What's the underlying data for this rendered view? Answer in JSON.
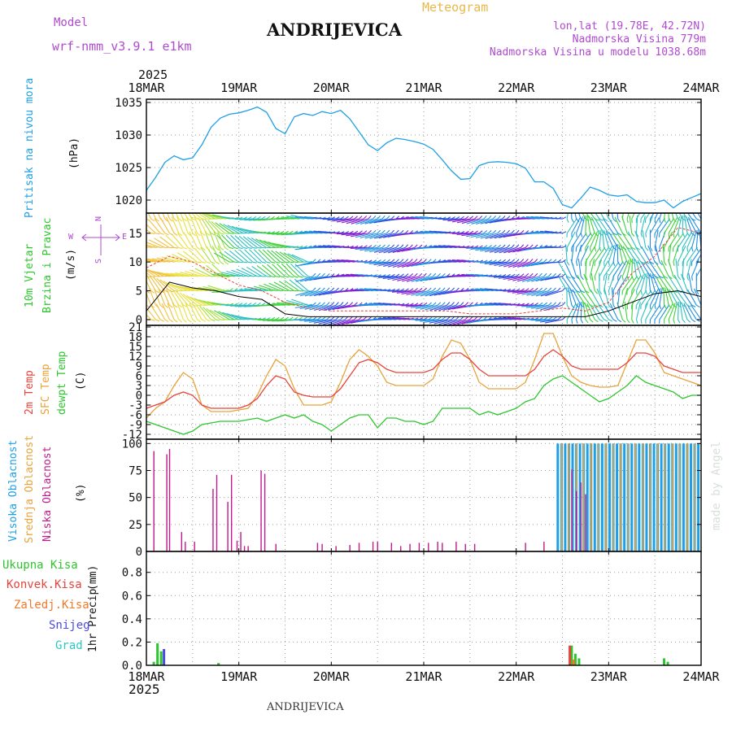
{
  "header": {
    "model_label": "Model",
    "model_name": "wrf-nmm_v3.9.1 e1km",
    "title": "ANDRIJEVICA",
    "subtitle": "Meteogram",
    "lonlat": "lon,lat (19.78E, 42.72N)",
    "elevation": "Nadmorska Visina 779m",
    "model_elevation": "Nadmorska Visina u modelu 1038.68m",
    "year_top": "2025",
    "year_bottom": "2025",
    "footer": "ANDRIJEVICA",
    "watermark": "made by Angel"
  },
  "colors": {
    "pressure": "#1fa0e6",
    "temp2m": "#e8433a",
    "sfc": "#e8a33a",
    "dewpt": "#2ec62e",
    "high_cloud": "#1fa0e6",
    "mid_cloud": "#e8a33a",
    "low_cloud": "#c01a8c",
    "label_magenta": "#b04ad0",
    "precip_total": "#2ec62e",
    "precip_conv": "#e8433a",
    "precip_frozen": "#f07a2a",
    "precip_snow": "#4a4ae6",
    "precip_graupel": "#2ec6c6"
  },
  "chart_data": [
    {
      "type": "line",
      "panel": "pressure",
      "ylabel_name": "Pritisak na nivou mora",
      "ylabel_unit": "(hPa)",
      "x_unit": "days since 18MAR 00UTC",
      "x_ticks": [
        "18MAR",
        "19MAR",
        "20MAR",
        "21MAR",
        "22MAR",
        "23MAR",
        "24MAR"
      ],
      "ylim": [
        1018,
        1035.5
      ],
      "yticks": [
        1020,
        1025,
        1030,
        1035
      ],
      "grid": true,
      "series": [
        {
          "name": "Pritisak na nivou mora",
          "x": [
            0,
            0.1,
            0.2,
            0.3,
            0.4,
            0.5,
            0.6,
            0.7,
            0.8,
            0.9,
            1.0,
            1.1,
            1.2,
            1.3,
            1.4,
            1.5,
            1.6,
            1.7,
            1.8,
            1.9,
            2.0,
            2.1,
            2.2,
            2.3,
            2.4,
            2.5,
            2.6,
            2.7,
            2.8,
            2.9,
            3.0,
            3.1,
            3.2,
            3.3,
            3.4,
            3.5,
            3.6,
            3.7,
            3.8,
            3.9,
            4.0,
            4.1,
            4.2,
            4.3,
            4.4,
            4.5,
            4.6,
            4.7,
            4.8,
            4.9,
            5.0,
            5.1,
            5.2,
            5.3,
            5.4,
            5.5,
            5.6,
            5.7,
            5.8,
            5.9,
            6.0
          ],
          "values": [
            1021.5,
            1023.5,
            1025.8,
            1026.8,
            1026.2,
            1026.5,
            1028.5,
            1031.2,
            1032.6,
            1033.2,
            1033.4,
            1033.8,
            1034.3,
            1033.5,
            1031.0,
            1030.2,
            1032.8,
            1033.3,
            1033.0,
            1033.6,
            1033.3,
            1033.8,
            1032.5,
            1030.5,
            1028.5,
            1027.6,
            1028.8,
            1029.5,
            1029.3,
            1029.0,
            1028.6,
            1027.8,
            1026.2,
            1024.5,
            1023.2,
            1023.3,
            1025.3,
            1025.8,
            1025.9,
            1025.8,
            1025.6,
            1024.9,
            1022.8,
            1022.8,
            1021.8,
            1019.3,
            1018.8,
            1020.3,
            1022.0,
            1021.5,
            1020.8,
            1020.6,
            1020.8,
            1019.8,
            1019.6,
            1019.6,
            1020.0,
            1018.8,
            1019.8,
            1020.4,
            1021.0
          ]
        }
      ]
    },
    {
      "type": "barb",
      "panel": "wind",
      "ylabel_name_1": "10m Vjetar",
      "ylabel_name_2": "Brzina i Pravac",
      "ylabel_unit": "(m/s)",
      "compass": {
        "n": "N",
        "w": "W",
        "e": "E",
        "s": "S"
      },
      "ylim": [
        -1,
        18.5
      ],
      "yticks": [
        0,
        5,
        10,
        15
      ],
      "grid": false,
      "barb_levels": [
        0,
        2.5,
        5,
        7.5,
        10,
        12.5,
        15,
        17.5
      ],
      "series": [
        {
          "name": "10m speed",
          "x": [
            0,
            0.25,
            0.5,
            0.75,
            1.0,
            1.25,
            1.5,
            1.75,
            2.0,
            2.25,
            2.5,
            2.75,
            3.0,
            3.25,
            3.5,
            3.75,
            4.0,
            4.25,
            4.5,
            4.75,
            5.0,
            5.25,
            5.5,
            5.75,
            6.0
          ],
          "values": [
            1.5,
            6.5,
            5.5,
            5,
            4,
            3.5,
            1,
            0.5,
            0.5,
            0.5,
            0.5,
            0.5,
            0.5,
            0.5,
            0.5,
            0.5,
            0.5,
            0.5,
            0.5,
            0.5,
            1.5,
            3,
            4.5,
            5,
            4
          ]
        },
        {
          "name": "gust",
          "x": [
            0,
            0.25,
            0.5,
            0.75,
            1.0,
            1.25,
            1.5,
            1.75,
            2.0,
            2.25,
            2.5,
            2.75,
            3.0,
            3.25,
            3.5,
            3.75,
            4.0,
            4.25,
            4.5,
            4.75,
            5.0,
            5.25,
            5.5,
            5.75,
            6.0
          ],
          "values": [
            9,
            11,
            10,
            8,
            6,
            5,
            3,
            2,
            1.5,
            1.5,
            1.5,
            1.5,
            1.5,
            1.5,
            1,
            1,
            1,
            1.5,
            2,
            1.5,
            3,
            8,
            11,
            16,
            15
          ]
        }
      ]
    },
    {
      "type": "line",
      "panel": "temperature",
      "ylabel_name_1": "2m Temp",
      "ylabel_name_2": "SFC Temp",
      "ylabel_name_3": "dewpt Temp",
      "ylabel_unit": "(C)",
      "ylim": [
        -13.5,
        21.5
      ],
      "yticks": [
        -12,
        -9,
        -6,
        -3,
        0,
        3,
        6,
        9,
        12,
        15,
        18,
        21
      ],
      "grid": true,
      "x": [
        0,
        0.1,
        0.2,
        0.3,
        0.4,
        0.5,
        0.6,
        0.7,
        0.8,
        0.9,
        1.0,
        1.1,
        1.2,
        1.3,
        1.4,
        1.5,
        1.6,
        1.7,
        1.8,
        1.9,
        2.0,
        2.1,
        2.2,
        2.3,
        2.4,
        2.5,
        2.6,
        2.7,
        2.8,
        2.9,
        3.0,
        3.1,
        3.2,
        3.3,
        3.4,
        3.5,
        3.6,
        3.7,
        3.8,
        3.9,
        4.0,
        4.1,
        4.2,
        4.3,
        4.4,
        4.5,
        4.6,
        4.7,
        4.8,
        4.9,
        5.0,
        5.1,
        5.2,
        5.3,
        5.4,
        5.5,
        5.6,
        5.7,
        5.8,
        5.9,
        6.0
      ],
      "series": [
        {
          "name": "2m Temp",
          "values": [
            -4,
            -3,
            -2,
            0,
            1,
            0,
            -3,
            -4,
            -4,
            -4,
            -4,
            -3,
            -1,
            3,
            6,
            5,
            1,
            0,
            -0.5,
            -0.5,
            -0.5,
            2,
            6,
            10,
            11,
            10,
            8,
            7,
            7,
            7,
            7,
            8,
            11,
            13,
            13,
            11,
            8,
            6,
            6,
            6,
            6,
            6,
            8,
            12,
            14,
            12,
            9,
            8,
            8,
            8,
            8,
            8,
            10,
            13,
            13,
            12,
            9,
            8,
            7,
            7,
            7
          ]
        },
        {
          "name": "SFC Temp",
          "values": [
            -7,
            -4,
            -2,
            3,
            7,
            5,
            -3,
            -5,
            -5,
            -5,
            -4.5,
            -4,
            0,
            6,
            11,
            9,
            2,
            -3,
            -3,
            -3,
            -2,
            4,
            11,
            14,
            12,
            9,
            4,
            3,
            3,
            3,
            3,
            5,
            12,
            17,
            16,
            11,
            4,
            2,
            2,
            2,
            2,
            4,
            11,
            19,
            19,
            12,
            6,
            4,
            3,
            2.5,
            2.5,
            3,
            10,
            17,
            17,
            13,
            7,
            6,
            5,
            4,
            3
          ]
        },
        {
          "name": "dewpt Temp",
          "values": [
            -8,
            -9,
            -10,
            -11,
            -12,
            -11,
            -9,
            -8.5,
            -8,
            -8,
            -8,
            -7.5,
            -7,
            -8,
            -7,
            -6,
            -7,
            -6,
            -8,
            -9,
            -11,
            -9,
            -7,
            -6,
            -6,
            -10,
            -7,
            -7,
            -8,
            -8,
            -9,
            -8,
            -4,
            -4,
            -4,
            -4,
            -6,
            -5,
            -6,
            -5,
            -4,
            -2,
            -1,
            3,
            5,
            6,
            4,
            2,
            0,
            -2,
            -1,
            1,
            3,
            6,
            4,
            3,
            2,
            1,
            -1,
            0,
            0
          ]
        }
      ]
    },
    {
      "type": "bar",
      "panel": "clouds",
      "ylabel_name_1": "Visoka Oblacnost",
      "ylabel_name_2": "Srednja Oblacnost",
      "ylabel_name_3": "Niska Oblacnost",
      "ylabel_unit": "(%)",
      "ylim": [
        0,
        104
      ],
      "yticks": [
        0,
        25,
        50,
        75,
        100
      ],
      "grid": true,
      "low_cloud": {
        "x": [
          0.08,
          0.22,
          0.25,
          0.38,
          0.42,
          0.52,
          0.72,
          0.76,
          0.88,
          0.92,
          0.98,
          1.02,
          1.06,
          1.1,
          1.24,
          1.28,
          1.4,
          1.85,
          1.9,
          2.05,
          2.2,
          2.3,
          2.45,
          2.5,
          2.65,
          2.75,
          2.85,
          2.95,
          3.05,
          3.15,
          3.2,
          3.35,
          3.45,
          3.55,
          4.1,
          4.3,
          4.6,
          4.65,
          4.7,
          4.75
        ],
        "values": [
          93,
          90,
          95,
          18,
          9,
          9,
          58,
          71,
          46,
          71,
          10,
          18,
          5,
          5,
          75,
          72,
          7,
          8,
          7,
          5,
          6,
          8,
          9,
          9,
          8,
          5,
          7,
          8,
          8,
          9,
          8,
          9,
          7,
          7,
          8,
          9,
          76,
          56,
          64,
          53
        ]
      },
      "high_cloud": {
        "x_start": 4.45,
        "x_end": 5.98,
        "step": 0.04,
        "value": 100
      },
      "mid_cloud": {
        "x_start": 4.47,
        "x_end": 5.96,
        "step": 0.08,
        "value": 100
      }
    },
    {
      "type": "bar",
      "panel": "precip",
      "ylabel_name": "1hr Precip",
      "ylabel_unit": "(mm)",
      "legend": [
        "Ukupna Kisa",
        "Konvek.Kisa",
        "Zaledj.Kisa",
        "Snijeg",
        "Grad"
      ],
      "ylim": [
        0,
        0.98
      ],
      "yticks": [
        0.0,
        0.2,
        0.4,
        0.6,
        0.8
      ],
      "grid": true,
      "series": [
        {
          "name": "Ukupna Kisa",
          "x": [
            0.08,
            0.12,
            0.16,
            0.78,
            4.6,
            4.64,
            4.68,
            5.6,
            5.64
          ],
          "values": [
            0.03,
            0.19,
            0.12,
            0.02,
            0.17,
            0.1,
            0.06,
            0.06,
            0.03
          ]
        },
        {
          "name": "Snijeg",
          "x": [
            0.19
          ],
          "values": [
            0.14
          ]
        },
        {
          "name": "Konvek.Kisa",
          "x": [
            4.58
          ],
          "values": [
            0.17
          ]
        },
        {
          "name": "Zaledj.Kisa",
          "x": [
            4.62
          ],
          "values": [
            0.05
          ]
        }
      ]
    }
  ]
}
